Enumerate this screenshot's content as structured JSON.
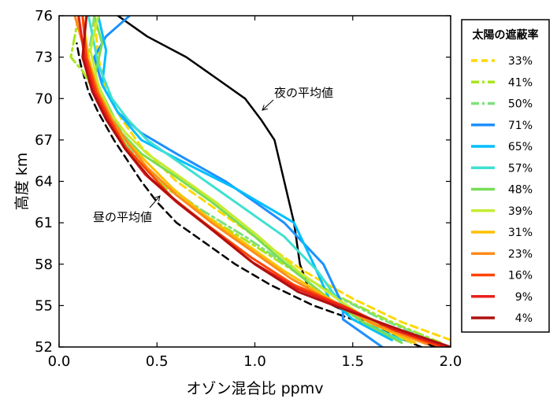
{
  "chart_data": {
    "type": "line",
    "xlabel": "オゾン混合比  ppmv",
    "ylabel": "高度  km",
    "xlim": [
      0.0,
      2.0
    ],
    "ylim": [
      52,
      76
    ],
    "x_ticks": [
      "0.0",
      "0.5",
      "1.0",
      "1.5",
      "2.0"
    ],
    "y_ticks": [
      "52",
      "55",
      "58",
      "61",
      "64",
      "67",
      "70",
      "73",
      "76"
    ],
    "legend": {
      "title": "太陽の遮蔽率",
      "placement": "right"
    },
    "annotations": [
      {
        "text": "夜の平均値",
        "target_series": "night_mean"
      },
      {
        "text": "昼の平均値",
        "target_series": "day_mean"
      }
    ],
    "series": [
      {
        "key": "night_mean",
        "color": "#000000",
        "style": "solid",
        "in_legend": false,
        "x": [
          1.92,
          1.75,
          1.55,
          1.4,
          1.28,
          1.23,
          1.2,
          1.15,
          1.1,
          1.03,
          0.95,
          0.8,
          0.65,
          0.45,
          0.3
        ],
        "y": [
          52,
          53,
          54,
          55,
          56,
          58,
          61,
          64,
          67,
          68.5,
          70,
          71.5,
          73,
          74.5,
          76
        ]
      },
      {
        "key": "day_mean",
        "color": "#000000",
        "style": "dashed",
        "in_legend": false,
        "x": [
          1.85,
          1.6,
          1.3,
          1.08,
          0.9,
          0.75,
          0.6,
          0.5,
          0.42,
          0.35,
          0.28,
          0.2,
          0.15,
          0.11,
          0.09
        ],
        "y": [
          52,
          53.5,
          55,
          56.5,
          58,
          59.5,
          61,
          62.5,
          64,
          65.5,
          67,
          69,
          70.5,
          72.5,
          74
        ]
      },
      {
        "name": "33%",
        "color": "#ffd700",
        "style": "dashed",
        "x": [
          2.0,
          1.75,
          1.5,
          1.25,
          1.0,
          0.8,
          0.6,
          0.42,
          0.32,
          0.24,
          0.2,
          0.18
        ],
        "y": [
          52.5,
          53.8,
          55.5,
          57.5,
          60,
          62,
          64,
          66.5,
          68.5,
          70.5,
          73,
          76
        ]
      },
      {
        "name": "41%",
        "color": "#a8e61d",
        "style": "dashdot",
        "x": [
          1.95,
          1.7,
          1.45,
          1.2,
          0.98,
          0.75,
          0.55,
          0.4,
          0.3,
          0.2,
          0.12,
          0.06,
          0.1
        ],
        "y": [
          52.3,
          53.8,
          55.5,
          57.5,
          59.5,
          61.5,
          63.5,
          65.5,
          67.5,
          70,
          72,
          73,
          76
        ]
      },
      {
        "name": "50%",
        "color": "#7ee07e",
        "style": "dashdot",
        "x": [
          1.9,
          1.65,
          1.4,
          1.18,
          0.95,
          0.72,
          0.52,
          0.38,
          0.28,
          0.2,
          0.15,
          0.18
        ],
        "y": [
          52.5,
          54,
          55.8,
          57.8,
          60,
          62,
          64,
          66,
          68,
          70.5,
          73,
          76
        ]
      },
      {
        "name": "71%",
        "color": "#1e90ff",
        "style": "solid",
        "x": [
          1.65,
          1.45,
          1.45,
          1.35,
          1.15,
          0.85,
          0.6,
          0.42,
          0.3,
          0.22,
          0.18,
          0.24,
          0.36
        ],
        "y": [
          52,
          54,
          55,
          58,
          61,
          64,
          66,
          67.5,
          69,
          71,
          73,
          74.5,
          76
        ]
      },
      {
        "name": "65%",
        "color": "#00bfff",
        "style": "solid",
        "x": [
          1.7,
          1.5,
          1.38,
          1.3,
          1.2,
          0.9,
          0.62,
          0.42,
          0.3,
          0.22,
          0.24,
          0.2
        ],
        "y": [
          52.5,
          54,
          55.5,
          58,
          61,
          63.5,
          65.5,
          67,
          69,
          71,
          73.5,
          76
        ]
      },
      {
        "name": "57%",
        "color": "#40e0d0",
        "style": "solid",
        "x": [
          1.75,
          1.55,
          1.42,
          1.32,
          1.15,
          0.85,
          0.6,
          0.45,
          0.35,
          0.27,
          0.2,
          0.15
        ],
        "y": [
          52.5,
          53.8,
          55.5,
          57.5,
          60,
          63,
          65.5,
          67,
          68.5,
          70,
          72.5,
          76
        ]
      },
      {
        "name": "48%",
        "color": "#77dd55",
        "style": "solid",
        "x": [
          1.75,
          1.55,
          1.38,
          1.2,
          1.0,
          0.78,
          0.58,
          0.42,
          0.32,
          0.25,
          0.18,
          0.22,
          0.18
        ],
        "y": [
          52.3,
          53.8,
          55.5,
          57.5,
          60,
          62.5,
          64.5,
          66,
          67.5,
          69.5,
          71.5,
          74,
          76
        ]
      },
      {
        "name": "39%",
        "color": "#c5ec32",
        "style": "solid",
        "x": [
          1.8,
          1.6,
          1.42,
          1.22,
          1.02,
          0.8,
          0.6,
          0.45,
          0.34,
          0.26,
          0.2,
          0.16,
          0.2
        ],
        "y": [
          52.3,
          53.8,
          55.5,
          57.5,
          60,
          62.5,
          64.5,
          66,
          67.5,
          69,
          71,
          73.5,
          76
        ]
      },
      {
        "name": "31%",
        "color": "#ffc000",
        "style": "solid",
        "x": [
          1.82,
          1.58,
          1.38,
          1.15,
          0.95,
          0.75,
          0.58,
          0.44,
          0.34,
          0.26,
          0.2,
          0.15,
          0.12
        ],
        "y": [
          52.3,
          53.8,
          55.5,
          57.5,
          59.5,
          61.5,
          63.5,
          65.5,
          67,
          68.5,
          70.5,
          73,
          76
        ]
      },
      {
        "name": "23%",
        "color": "#ff8c1a",
        "style": "solid",
        "x": [
          1.88,
          1.62,
          1.4,
          1.18,
          0.98,
          0.78,
          0.6,
          0.45,
          0.35,
          0.27,
          0.2,
          0.14,
          0.08
        ],
        "y": [
          52.2,
          53.6,
          55.2,
          57,
          59,
          61,
          63,
          65,
          66.8,
          68.5,
          70.5,
          73,
          76
        ]
      },
      {
        "name": "16%",
        "color": "#ff4500",
        "style": "solid",
        "x": [
          1.95,
          1.7,
          1.45,
          1.2,
          0.98,
          0.76,
          0.58,
          0.45,
          0.34,
          0.26,
          0.19,
          0.14,
          0.12
        ],
        "y": [
          52,
          53.3,
          55,
          56.5,
          58.5,
          60.8,
          62.8,
          64.8,
          66.5,
          68.5,
          70.5,
          73,
          76
        ]
      },
      {
        "name": "9%",
        "color": "#e8201c",
        "style": "solid",
        "x": [
          1.98,
          1.72,
          1.47,
          1.22,
          0.98,
          0.78,
          0.6,
          0.44,
          0.33,
          0.25,
          0.18,
          0.13,
          0.1
        ],
        "y": [
          52,
          53.2,
          54.8,
          56.2,
          58.2,
          60.5,
          62.5,
          64.5,
          66.5,
          68.5,
          70.5,
          73,
          76
        ]
      },
      {
        "name": "4%",
        "color": "#b01010",
        "style": "solid",
        "x": [
          2.0,
          1.75,
          1.48,
          1.22,
          1.0,
          0.8,
          0.62,
          0.46,
          0.34,
          0.24,
          0.17,
          0.12,
          0.14
        ],
        "y": [
          52,
          53.2,
          54.6,
          56,
          58,
          60.3,
          62.3,
          64.3,
          66.3,
          68.5,
          70.5,
          73,
          76
        ]
      }
    ]
  }
}
